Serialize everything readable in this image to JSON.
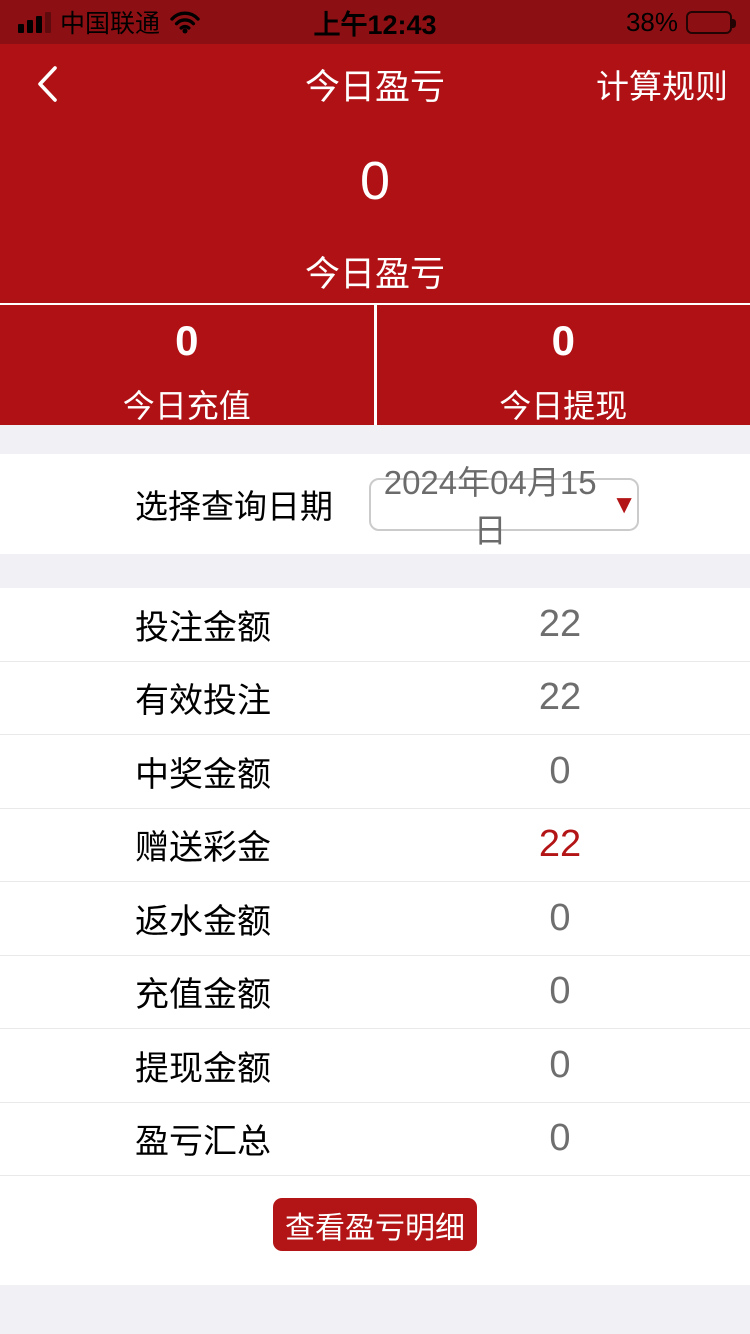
{
  "status_bar": {
    "carrier": "中国联通",
    "time": "上午12:43",
    "battery_percent": "38%",
    "battery_level": 0.38
  },
  "nav": {
    "title": "今日盈亏",
    "right_action": "计算规则"
  },
  "summary": {
    "main_value": "0",
    "main_label": "今日盈亏",
    "cells": [
      {
        "value": "0",
        "label": "今日充值"
      },
      {
        "value": "0",
        "label": "今日提现"
      }
    ]
  },
  "date_picker": {
    "label": "选择查询日期",
    "value": "2024年04月15日",
    "caret": "▼"
  },
  "stats": {
    "rows": [
      {
        "label": "投注金额",
        "value": "22",
        "highlight": false
      },
      {
        "label": "有效投注",
        "value": "22",
        "highlight": false
      },
      {
        "label": "中奖金额",
        "value": "0",
        "highlight": false
      },
      {
        "label": "赠送彩金",
        "value": "22",
        "highlight": true
      },
      {
        "label": "返水金额",
        "value": "0",
        "highlight": false
      },
      {
        "label": "充值金额",
        "value": "0",
        "highlight": false
      },
      {
        "label": "提现金额",
        "value": "0",
        "highlight": false
      },
      {
        "label": "盈亏汇总",
        "value": "0",
        "highlight": false
      }
    ]
  },
  "footer": {
    "button_label": "查看盈亏明细"
  },
  "colors": {
    "status_bar_bg": "#8c1013",
    "header_bg": "#b01115",
    "accent_red": "#b31415",
    "band_gray": "#f1f1f5",
    "value_gray": "#6e6e6e"
  }
}
